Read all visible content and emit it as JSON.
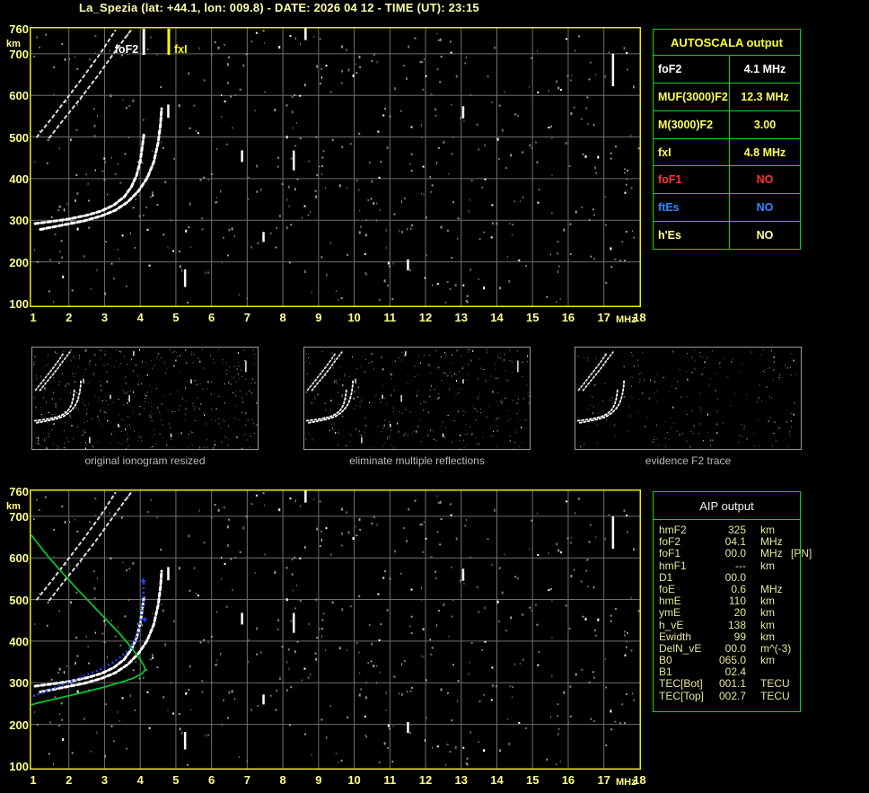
{
  "header": {
    "title": "La_Spezia (lat: +44.1, lon: 009.8) - DATE: 2026 04 12 - TIME (UT): 23:15"
  },
  "colors": {
    "accent_yellow": "#ffff8c",
    "plot_border": "#ebeb00",
    "grid": "#6e6e6e",
    "table_border": "#00d829",
    "profile_green": "#00cc33",
    "restored_blue": "#2244ff",
    "trace_white": "#ffffff",
    "caption_gray": "#b9b9b9"
  },
  "autoscala_table": {
    "title": "AUTOSCALA output",
    "rows": [
      {
        "name": "foF2",
        "label": "foF2",
        "value": "4.1 MHz",
        "color": "#ffffff"
      },
      {
        "name": "muf3000f2",
        "label": "MUF(3000)F2",
        "value": "12.3 MHz",
        "color": "#ffff55"
      },
      {
        "name": "m3000f2",
        "label": "M(3000)F2",
        "value": "3.00",
        "color": "#ffff55"
      },
      {
        "name": "fxI",
        "label": "fxI",
        "value": "4.8 MHz",
        "color": "#ffff55"
      },
      {
        "name": "foF1",
        "label": "foF1",
        "value": "NO",
        "color": "#ff3333"
      },
      {
        "name": "ftEs",
        "label": "ftEs",
        "value": "NO",
        "color": "#3388ff"
      },
      {
        "name": "hEs",
        "label": "h'Es",
        "value": "NO",
        "color": "#ffff99"
      }
    ]
  },
  "aip_table": {
    "title": "AIP output",
    "rows": [
      {
        "label": "hmF2",
        "value": "325",
        "unit": "km",
        "extra": ""
      },
      {
        "label": "foF2",
        "value": "04.1",
        "unit": "MHz",
        "extra": ""
      },
      {
        "label": "foF1",
        "value": "00.0",
        "unit": "MHz",
        "extra": "[PN]"
      },
      {
        "label": "hmF1",
        "value": "---",
        "unit": "km",
        "extra": ""
      },
      {
        "label": "D1",
        "value": "00.0",
        "unit": "",
        "extra": ""
      },
      {
        "label": "foE",
        "value": "0.6",
        "unit": "MHz",
        "extra": ""
      },
      {
        "label": "hmE",
        "value": "110",
        "unit": "km",
        "extra": ""
      },
      {
        "label": "ymE",
        "value": "20",
        "unit": "km",
        "extra": ""
      },
      {
        "label": "h_vE",
        "value": "138",
        "unit": "km",
        "extra": ""
      },
      {
        "label": "Ewidth",
        "value": "99",
        "unit": "km",
        "extra": ""
      },
      {
        "label": "DelN_vE",
        "value": "00.0",
        "unit": "m^(-3)",
        "extra": ""
      },
      {
        "label": "B0",
        "value": "065.0",
        "unit": "km",
        "extra": ""
      },
      {
        "label": "B1",
        "value": "02.4",
        "unit": "",
        "extra": ""
      },
      {
        "label": "TEC[Bot]",
        "value": "001.1",
        "unit": "TECU",
        "extra": ""
      },
      {
        "label": "TEC[Top]",
        "value": "002.7",
        "unit": "TECU",
        "extra": ""
      }
    ]
  },
  "thumbnails": [
    {
      "caption": "original ionogram resized",
      "seed": 11,
      "noise_count": 430,
      "show_streaks": true
    },
    {
      "caption": "eliminate multiple reflections",
      "seed": 22,
      "noise_count": 330,
      "show_streaks": true
    },
    {
      "caption": "evidence F2 trace",
      "seed": 33,
      "noise_count": 220,
      "show_streaks": false
    }
  ],
  "chart_data": [
    {
      "id": "received-ionogram",
      "type": "scatter",
      "title": "",
      "xlabel": "MHz",
      "ylabel": "km",
      "xlim": [
        1,
        18.1
      ],
      "ylim": [
        100,
        760
      ],
      "grid": true,
      "x_ticks": [
        "1",
        "2",
        "3",
        "4",
        "5",
        "6",
        "7",
        "8",
        "9",
        "10",
        "11",
        "12",
        "13",
        "14",
        "15",
        "16",
        "17",
        "18"
      ],
      "y_ticks": [
        760,
        700,
        600,
        500,
        400,
        300,
        200,
        100
      ],
      "series": [
        {
          "name": "F2-trace-ordinary",
          "color": "#ffffff",
          "points": [
            [
              1.05,
              292
            ],
            [
              1.5,
              297
            ],
            [
              2.0,
              303
            ],
            [
              2.5,
              312
            ],
            [
              2.9,
              322
            ],
            [
              3.25,
              336
            ],
            [
              3.55,
              356
            ],
            [
              3.75,
              380
            ],
            [
              3.9,
              408
            ],
            [
              4.0,
              442
            ],
            [
              4.06,
              478
            ],
            [
              4.1,
              505
            ]
          ]
        },
        {
          "name": "F2-trace-extraordinary",
          "color": "#ffffff",
          "points": [
            [
              1.2,
              278
            ],
            [
              1.8,
              288
            ],
            [
              2.4,
              298
            ],
            [
              2.9,
              310
            ],
            [
              3.3,
              324
            ],
            [
              3.65,
              344
            ],
            [
              3.95,
              370
            ],
            [
              4.2,
              402
            ],
            [
              4.38,
              440
            ],
            [
              4.5,
              486
            ],
            [
              4.57,
              530
            ],
            [
              4.6,
              568
            ]
          ]
        },
        {
          "name": "second-hop-ordinary",
          "color": "#dcdcdc",
          "points": [
            [
              1.1,
              500
            ],
            [
              1.5,
              543
            ],
            [
              1.9,
              588
            ],
            [
              2.4,
              644
            ],
            [
              2.9,
              703
            ],
            [
              3.3,
              756
            ]
          ]
        },
        {
          "name": "second-hop-extraordinary",
          "color": "#dcdcdc",
          "points": [
            [
              1.45,
              498
            ],
            [
              1.85,
              542
            ],
            [
              2.3,
              590
            ],
            [
              2.8,
              646
            ],
            [
              3.3,
              706
            ],
            [
              3.75,
              758
            ]
          ]
        }
      ],
      "markers": [
        {
          "name": "foF2-marker",
          "label": "foF2",
          "freq": 4.1,
          "color": "#ffffff",
          "label_side": "left"
        },
        {
          "name": "fxI-marker",
          "label": "fxI",
          "freq": 4.8,
          "color": "#ffff00",
          "label_side": "right"
        }
      ],
      "noise": {
        "seed": 7,
        "count": 520,
        "streaks": [
          [
            8.63,
            733,
            764
          ],
          [
            17.25,
            622,
            700
          ],
          [
            8.3,
            420,
            466
          ],
          [
            5.25,
            140,
            182
          ],
          [
            6.85,
            440,
            468
          ],
          [
            13.05,
            545,
            574
          ],
          [
            7.45,
            248,
            272
          ],
          [
            4.78,
            546,
            578
          ],
          [
            11.5,
            180,
            206
          ]
        ]
      }
    },
    {
      "id": "aip-profile-ionogram",
      "type": "scatter",
      "title": "",
      "xlabel": "MHz",
      "ylabel": "km",
      "xlim": [
        1,
        18.1
      ],
      "ylim": [
        100,
        760
      ],
      "grid": true,
      "x_ticks": [
        "1",
        "2",
        "3",
        "4",
        "5",
        "6",
        "7",
        "8",
        "9",
        "10",
        "11",
        "12",
        "13",
        "14",
        "15",
        "16",
        "17",
        "18"
      ],
      "y_ticks": [
        760,
        700,
        600,
        500,
        400,
        300,
        200,
        100
      ],
      "series": [
        {
          "name": "F2-trace-ordinary",
          "color": "#ffffff",
          "points": [
            [
              1.05,
              292
            ],
            [
              1.5,
              297
            ],
            [
              2.0,
              303
            ],
            [
              2.5,
              312
            ],
            [
              2.9,
              322
            ],
            [
              3.25,
              336
            ],
            [
              3.55,
              356
            ],
            [
              3.75,
              380
            ],
            [
              3.9,
              408
            ],
            [
              4.0,
              442
            ],
            [
              4.06,
              478
            ],
            [
              4.1,
              505
            ]
          ]
        },
        {
          "name": "F2-trace-extraordinary",
          "color": "#ffffff",
          "points": [
            [
              1.2,
              278
            ],
            [
              1.8,
              288
            ],
            [
              2.4,
              298
            ],
            [
              2.9,
              310
            ],
            [
              3.3,
              324
            ],
            [
              3.65,
              344
            ],
            [
              3.95,
              370
            ],
            [
              4.2,
              402
            ],
            [
              4.38,
              440
            ],
            [
              4.5,
              486
            ],
            [
              4.57,
              530
            ],
            [
              4.6,
              568
            ]
          ]
        },
        {
          "name": "second-hop-ordinary",
          "color": "#dcdcdc",
          "points": [
            [
              1.1,
              500
            ],
            [
              1.5,
              543
            ],
            [
              1.9,
              588
            ],
            [
              2.4,
              644
            ],
            [
              2.9,
              703
            ],
            [
              3.3,
              756
            ]
          ]
        },
        {
          "name": "second-hop-extraordinary",
          "color": "#dcdcdc",
          "points": [
            [
              1.45,
              498
            ],
            [
              1.85,
              542
            ],
            [
              2.3,
              590
            ],
            [
              2.8,
              646
            ],
            [
              3.3,
              706
            ],
            [
              3.75,
              758
            ]
          ]
        }
      ],
      "overlays": {
        "profile": {
          "name": "electron-density-profile",
          "color": "#00cc33",
          "hmF2_km": 325,
          "foF2_MHz": 4.1,
          "topside": [
            [
              0.95,
              655
            ],
            [
              1.15,
              632
            ],
            [
              1.45,
              600
            ],
            [
              1.8,
              566
            ],
            [
              2.2,
              528
            ],
            [
              2.6,
              492
            ],
            [
              3.0,
              456
            ],
            [
              3.4,
              420
            ],
            [
              3.7,
              390
            ],
            [
              3.95,
              362
            ],
            [
              4.1,
              342
            ],
            [
              4.14,
              331
            ]
          ],
          "bottomside": [
            [
              4.14,
              331
            ],
            [
              4.05,
              322
            ],
            [
              3.8,
              311
            ],
            [
              3.45,
              301
            ],
            [
              3.0,
              290
            ],
            [
              2.5,
              279
            ],
            [
              2.0,
              269
            ],
            [
              1.5,
              259
            ],
            [
              1.1,
              251
            ],
            [
              0.95,
              247
            ]
          ]
        },
        "restored": {
          "name": "restored-F2-trace",
          "color": "#2244ff",
          "points": [
            [
              1.0,
              268
            ],
            [
              1.4,
              281
            ],
            [
              1.9,
              298
            ],
            [
              2.4,
              315
            ],
            [
              2.9,
              333
            ],
            [
              3.3,
              352
            ],
            [
              3.6,
              372
            ],
            [
              3.82,
              396
            ],
            [
              3.95,
              424
            ],
            [
              4.03,
              456
            ],
            [
              4.08,
              492
            ],
            [
              4.1,
              540
            ]
          ],
          "plus_markers": [
            [
              4.08,
              545
            ],
            [
              4.12,
              452
            ]
          ]
        }
      },
      "noise": {
        "seed": 7,
        "count": 520,
        "streaks": [
          [
            8.63,
            733,
            764
          ],
          [
            17.25,
            622,
            700
          ],
          [
            8.3,
            420,
            466
          ],
          [
            5.25,
            140,
            182
          ],
          [
            6.85,
            440,
            468
          ],
          [
            13.05,
            545,
            574
          ],
          [
            7.45,
            248,
            272
          ],
          [
            4.78,
            546,
            578
          ],
          [
            11.5,
            180,
            206
          ]
        ]
      }
    }
  ]
}
